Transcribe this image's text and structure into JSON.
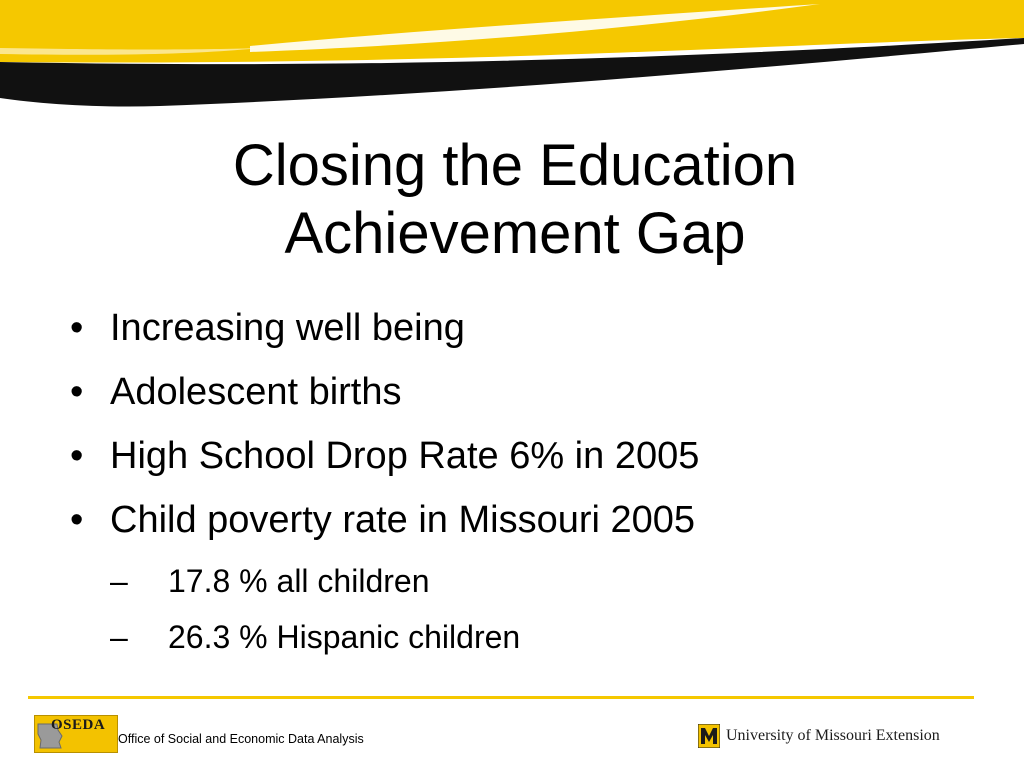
{
  "slide": {
    "title_line1": "Closing the Education",
    "title_line2": "Achievement Gap",
    "bullets": [
      {
        "marker": "•",
        "text": "Increasing well being"
      },
      {
        "marker": "•",
        "text": "Adolescent births"
      },
      {
        "marker": "•",
        "text": "High School Drop Rate 6% in 2005"
      },
      {
        "marker": "•",
        "text": "Child poverty rate in Missouri 2005"
      }
    ],
    "subbullets": [
      {
        "marker": "–",
        "text": "17.8 % all children"
      },
      {
        "marker": "–",
        "text": "26.3 % Hispanic children"
      }
    ]
  },
  "footer": {
    "oseda_logo": "OSEDA",
    "oseda_caption": "Office of Social and Economic Data Analysis",
    "mu_logo_text": "University of Missouri Extension"
  },
  "colors": {
    "gold": "#f5c800",
    "black": "#000000"
  }
}
